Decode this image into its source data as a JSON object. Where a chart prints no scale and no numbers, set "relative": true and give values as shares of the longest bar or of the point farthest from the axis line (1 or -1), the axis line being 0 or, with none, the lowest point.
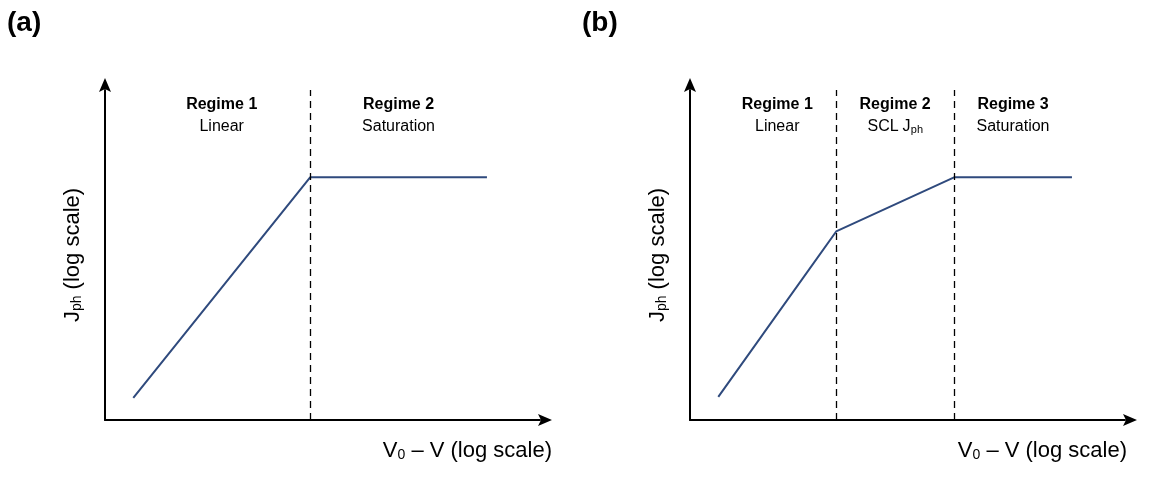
{
  "chart_data": [
    {
      "type": "line",
      "title": "(a)",
      "relative": true,
      "marker": "none",
      "line_style": "solid",
      "xlabel": "V$_{0}$ – V (log scale)",
      "ylabel": "J$_{ph}$ (log scale)",
      "categories": [
        null,
        null,
        null
      ],
      "series": [
        {
          "color": "#2f4a7d",
          "values": [
            0.091,
            1,
            1
          ]
        }
      ],
      "ref_lines": [
        {
          "axis": "x",
          "line_style": "dashed",
          "color": "#000000"
        }
      ],
      "annotations": [
        "Regime 1\nLinear",
        "Regime 2\nSaturation"
      ]
    },
    {
      "type": "line",
      "title": "(b)",
      "relative": true,
      "marker": "none",
      "line_style": "solid",
      "xlabel": "V$_{0}$ – V (log scale)",
      "ylabel": "J$_{ph}$ (log scale)",
      "categories": [
        null,
        null,
        null,
        null
      ],
      "series": [
        {
          "color": "#2f4a7d",
          "values": [
            0.095,
            0.777,
            1,
            1
          ]
        }
      ],
      "ref_lines": [
        {
          "axis": "x",
          "line_style": "dashed",
          "color": "#000000"
        },
        {
          "axis": "x",
          "line_style": "dashed",
          "color": "#000000"
        }
      ],
      "annotations": [
        "Regime 1\nLinear",
        "Regime 2\nSCL J$_{ph}$",
        "Regime 3\nSaturation"
      ]
    }
  ]
}
